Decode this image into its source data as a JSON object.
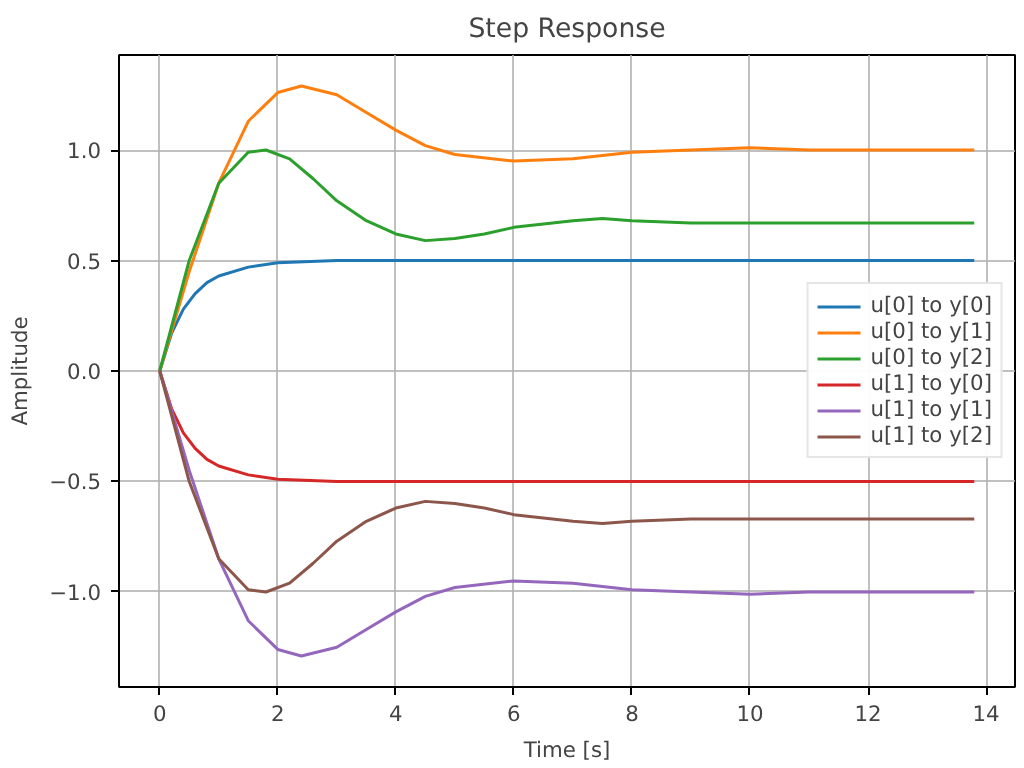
{
  "chart_data": {
    "type": "line",
    "title": "Step Response",
    "xlabel": "Time [s]",
    "ylabel": "Amplitude",
    "xlim": [
      -0.69,
      14.49
    ],
    "ylim": [
      -1.43,
      1.43
    ],
    "xticks": [
      0,
      2,
      4,
      6,
      8,
      10,
      12,
      14
    ],
    "yticks": [
      {
        "value": -1.0,
        "label": "−1.0"
      },
      {
        "value": -0.5,
        "label": "−0.5"
      },
      {
        "value": 0.0,
        "label": "0.0"
      },
      {
        "value": 0.5,
        "label": "0.5"
      },
      {
        "value": 1.0,
        "label": "1.0"
      }
    ],
    "grid": true,
    "legend": "right",
    "line_style": "solid",
    "marker": "none",
    "series": [
      {
        "name": "u[0] to y[0]",
        "color": "#1f77b4",
        "x": [
          0,
          0.2,
          0.4,
          0.6,
          0.8,
          1.0,
          1.5,
          2,
          3,
          13.8
        ],
        "values": [
          0,
          0.17,
          0.28,
          0.35,
          0.4,
          0.43,
          0.47,
          0.49,
          0.5,
          0.5
        ]
      },
      {
        "name": "u[0] to y[1]",
        "color": "#ff7f0e",
        "x": [
          0,
          0.5,
          1,
          1.5,
          2,
          2.4,
          3,
          3.5,
          4,
          4.5,
          5,
          6,
          7,
          8,
          9,
          10,
          11,
          12,
          13.8
        ],
        "values": [
          0,
          0.45,
          0.85,
          1.13,
          1.26,
          1.29,
          1.25,
          1.17,
          1.09,
          1.02,
          0.98,
          0.95,
          0.96,
          0.99,
          1.0,
          1.01,
          1.0,
          1.0,
          1.0
        ]
      },
      {
        "name": "u[0] to y[2]",
        "color": "#2ca02c",
        "x": [
          0,
          0.5,
          1,
          1.5,
          1.8,
          2.2,
          2.6,
          3,
          3.5,
          4,
          4.5,
          5,
          5.5,
          6,
          7,
          7.5,
          8,
          9,
          10,
          12,
          13.8
        ],
        "values": [
          0,
          0.5,
          0.85,
          0.99,
          1.0,
          0.96,
          0.87,
          0.77,
          0.68,
          0.62,
          0.59,
          0.6,
          0.62,
          0.65,
          0.68,
          0.69,
          0.68,
          0.67,
          0.67,
          0.67,
          0.67
        ]
      },
      {
        "name": "u[1] to y[0]",
        "color": "#d62728",
        "x": [
          0,
          0.2,
          0.4,
          0.6,
          0.8,
          1.0,
          1.5,
          2,
          3,
          13.8
        ],
        "values": [
          0,
          -0.17,
          -0.28,
          -0.35,
          -0.4,
          -0.43,
          -0.47,
          -0.49,
          -0.5,
          -0.5
        ]
      },
      {
        "name": "u[1] to y[1]",
        "color": "#9467bd",
        "x": [
          0,
          0.5,
          1,
          1.5,
          2,
          2.4,
          3,
          3.5,
          4,
          4.5,
          5,
          6,
          7,
          8,
          9,
          10,
          11,
          12,
          13.8
        ],
        "values": [
          0,
          -0.45,
          -0.85,
          -1.13,
          -1.26,
          -1.29,
          -1.25,
          -1.17,
          -1.09,
          -1.02,
          -0.98,
          -0.95,
          -0.96,
          -0.99,
          -1.0,
          -1.01,
          -1.0,
          -1.0,
          -1.0
        ]
      },
      {
        "name": "u[1] to y[2]",
        "color": "#8c564b",
        "x": [
          0,
          0.5,
          1,
          1.5,
          1.8,
          2.2,
          2.6,
          3,
          3.5,
          4,
          4.5,
          5,
          5.5,
          6,
          7,
          7.5,
          8,
          9,
          10,
          12,
          13.8
        ],
        "values": [
          0,
          -0.5,
          -0.85,
          -0.99,
          -1.0,
          -0.96,
          -0.87,
          -0.77,
          -0.68,
          -0.62,
          -0.59,
          -0.6,
          -0.62,
          -0.65,
          -0.68,
          -0.69,
          -0.68,
          -0.67,
          -0.67,
          -0.67,
          -0.67
        ]
      }
    ]
  }
}
